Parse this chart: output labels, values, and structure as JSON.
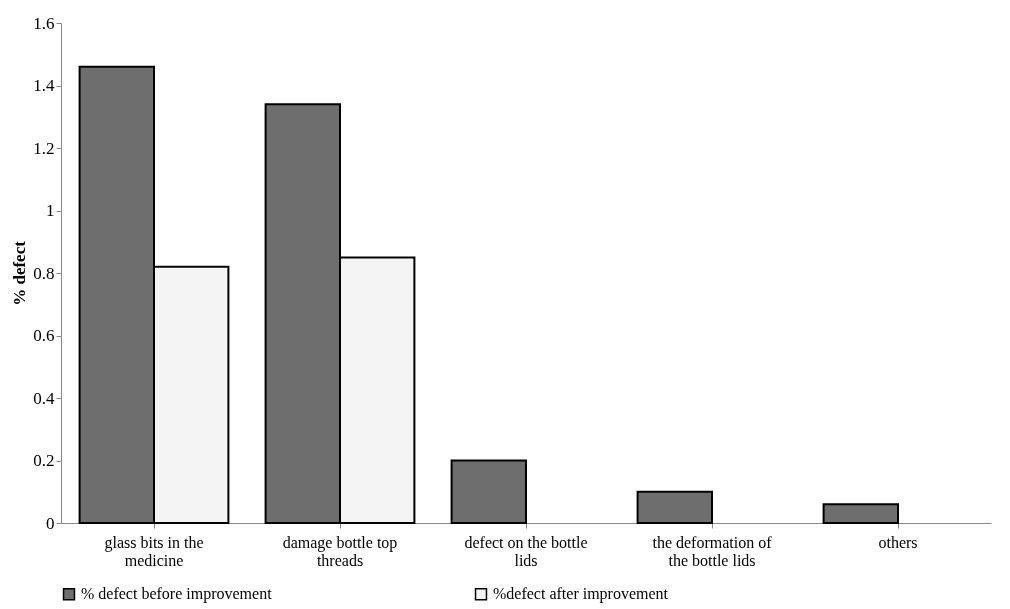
{
  "chart_data": {
    "type": "bar",
    "ylabel": "% defect",
    "categories": [
      "glass bits in the medicine",
      "damage bottle top threads",
      "defect on the bottle lids",
      "the deformation of the bottle lids",
      "others"
    ],
    "series": [
      {
        "name": "% defect before improvement",
        "color": "#6e6e6e",
        "values": [
          1.46,
          1.34,
          0.2,
          0.1,
          0.06
        ]
      },
      {
        "name": "%defect after improvement",
        "color": "#f4f4f4",
        "values": [
          0.82,
          0.85,
          null,
          null,
          null
        ]
      }
    ],
    "ylim": [
      0,
      1.6
    ],
    "yticks": [
      0,
      0.2,
      0.4,
      0.6,
      0.8,
      1,
      1.2,
      1.4,
      1.6
    ],
    "grid": false,
    "legend": "bottom"
  }
}
